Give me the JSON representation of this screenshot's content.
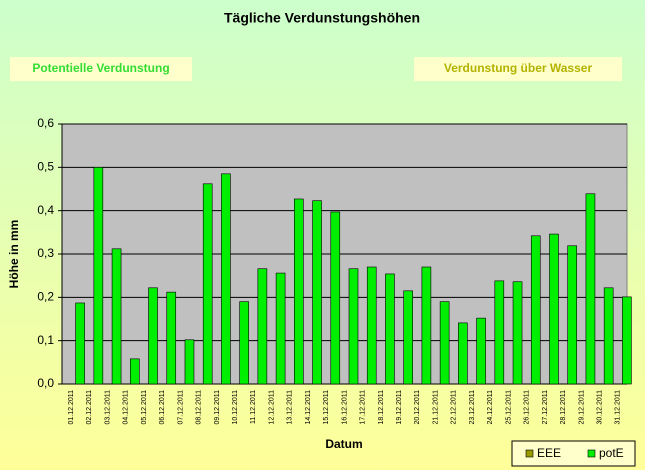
{
  "chart_data": {
    "type": "bar",
    "title": "Tägliche Verdunstungshöhen",
    "buttons": [
      "Potentielle Verdunstung",
      "Verdunstung über Wasser"
    ],
    "xlabel": "Datum",
    "ylabel": "Höhe in mm",
    "categories": [
      "01.12.2011",
      "02.12.2011",
      "03.12.2011",
      "04.12.2011",
      "05.12.2011",
      "06.12.2011",
      "07.12.2011",
      "08.12.2011",
      "09.12.2011",
      "10.12.2011",
      "11.12.2011",
      "12.12.2011",
      "13.12.2011",
      "14.12.2011",
      "15.12.2011",
      "16.12.2011",
      "17.12.2011",
      "18.12.2011",
      "19.12.2011",
      "20.12.2011",
      "21.12.2011",
      "22.12.2011",
      "23.12.2011",
      "24.12.2011",
      "25.12.2011",
      "26.12.2011",
      "27.12.2011",
      "28.12.2011",
      "29.12.2011",
      "30.12.2011",
      "31.12.2011"
    ],
    "series": [
      {
        "name": "EEE",
        "color": "#999900",
        "values": [
          null,
          null,
          null,
          null,
          null,
          null,
          null,
          null,
          null,
          null,
          null,
          null,
          null,
          null,
          null,
          null,
          null,
          null,
          null,
          null,
          null,
          null,
          null,
          null,
          null,
          null,
          null,
          null,
          null,
          null,
          null
        ]
      },
      {
        "name": "potE",
        "color": "#00ee00",
        "values": [
          0.187,
          0.5,
          0.312,
          0.058,
          0.222,
          0.212,
          0.102,
          0.462,
          0.485,
          0.19,
          0.266,
          0.256,
          0.427,
          0.423,
          0.397,
          0.266,
          0.27,
          0.254,
          0.215,
          0.27,
          0.19,
          0.141,
          0.152,
          0.238,
          0.236,
          0.342,
          0.346,
          0.319,
          0.439,
          0.222,
          0.201
        ]
      }
    ],
    "ylim": [
      0,
      0.6
    ],
    "yticks": [
      {
        "value": 0,
        "label": "0,0"
      },
      {
        "value": 0.1,
        "label": "0,1"
      },
      {
        "value": 0.2,
        "label": "0,2"
      },
      {
        "value": 0.3,
        "label": "0,3"
      },
      {
        "value": 0.4,
        "label": "0,4"
      },
      {
        "value": 0.5,
        "label": "0,5"
      },
      {
        "value": 0.6,
        "label": "0,6"
      }
    ],
    "grid": true,
    "legend": "bottom-right"
  }
}
